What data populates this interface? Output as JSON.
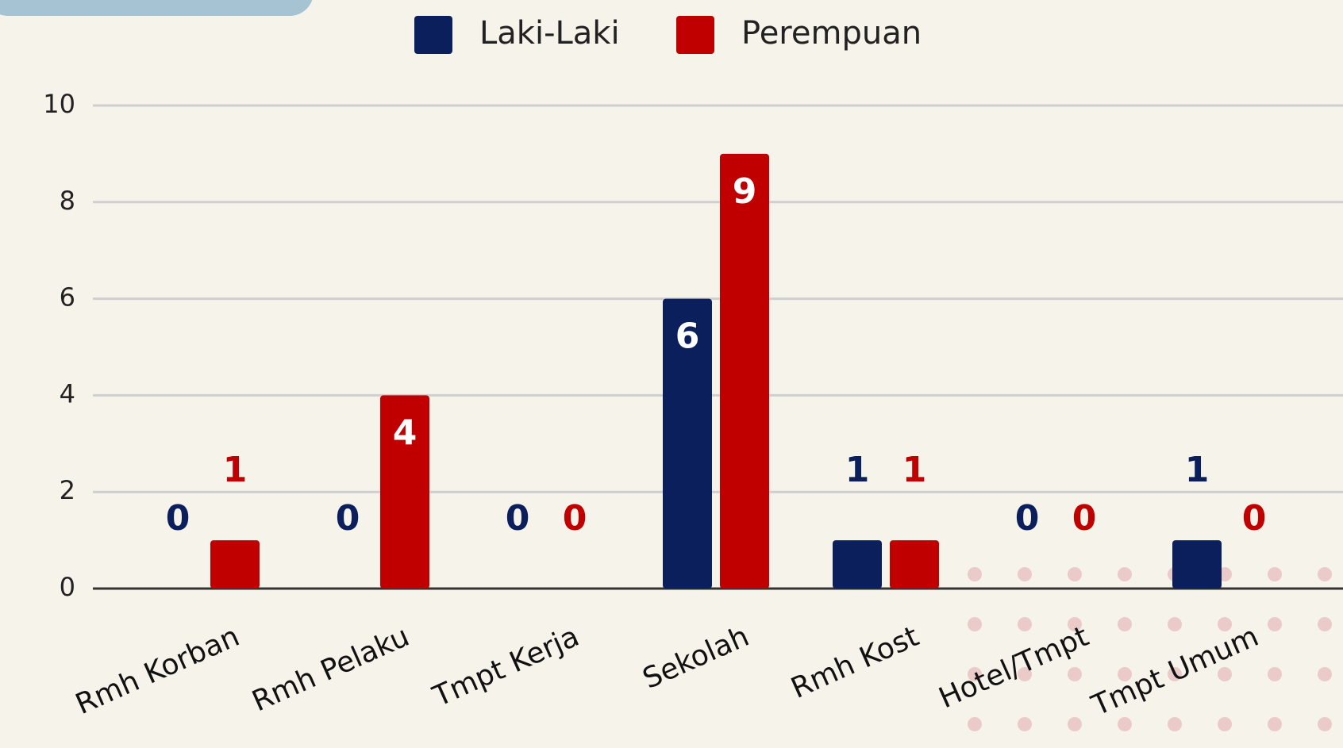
{
  "chart_data": {
    "type": "bar",
    "categories": [
      "Rmh Korban",
      "Rmh Pelaku",
      "Tmpt Kerja",
      "Sekolah",
      "Rmh Kost",
      "Hotel/Tmpt",
      "Tmpt Umum"
    ],
    "series": [
      {
        "name": "Laki-Laki",
        "color": "#0b1f5c",
        "values": [
          0,
          0,
          0,
          6,
          1,
          0,
          1
        ]
      },
      {
        "name": "Perempuan",
        "color": "#c00000",
        "values": [
          1,
          4,
          0,
          9,
          1,
          0,
          0
        ]
      }
    ],
    "ylim": [
      0,
      10
    ],
    "yticks": [
      0,
      2,
      4,
      6,
      8,
      10
    ],
    "grid": true,
    "legend": "top"
  }
}
